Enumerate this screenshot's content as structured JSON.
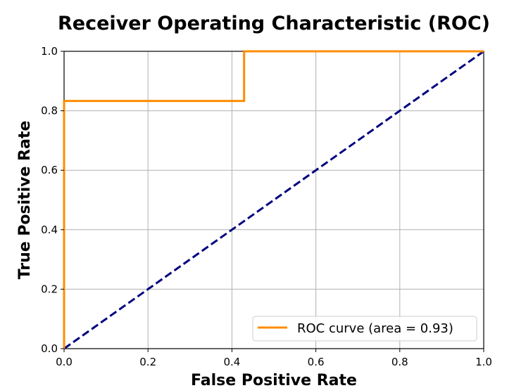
{
  "chart_data": {
    "type": "line",
    "title": "Receiver Operating Characteristic (ROC)",
    "xlabel": "False Positive Rate",
    "ylabel": "True Positive Rate",
    "xlim": [
      0.0,
      1.0
    ],
    "ylim": [
      0.0,
      1.0
    ],
    "x_ticks": [
      "0.0",
      "0.2",
      "0.4",
      "0.6",
      "0.8",
      "1.0"
    ],
    "y_ticks": [
      "0.0",
      "0.2",
      "0.4",
      "0.6",
      "0.8",
      "1.0"
    ],
    "grid": true,
    "legend_position": "bottom-right",
    "series": [
      {
        "name": "ROC curve (area = 0.93)",
        "color": "#ff8c00",
        "line_style": "solid",
        "x": [
          0.0,
          0.0,
          0.429,
          0.429,
          1.0
        ],
        "y": [
          0.0,
          0.833,
          0.833,
          1.0,
          1.0
        ]
      },
      {
        "color": "#000080",
        "line_style": "dashed",
        "x": [
          0.0,
          1.0
        ],
        "y": [
          0.0,
          1.0
        ]
      }
    ]
  }
}
